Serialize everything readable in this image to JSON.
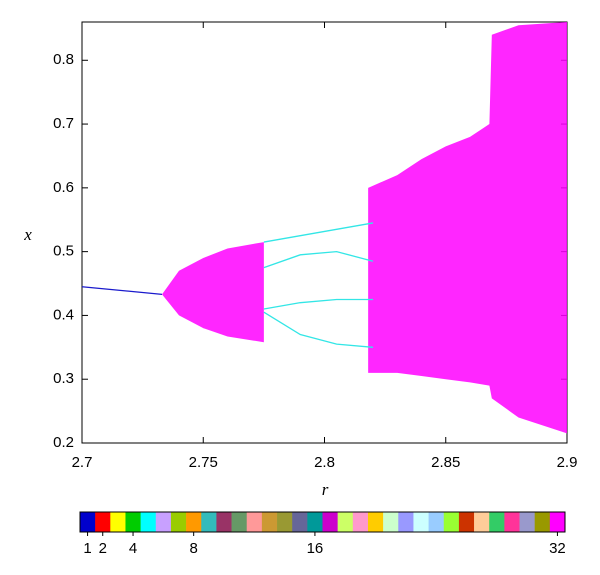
{
  "chart_data": {
    "type": "bifurcation",
    "xlabel": "r",
    "ylabel": "x",
    "xlim": [
      2.7,
      2.9
    ],
    "ylim": [
      0.2,
      0.86
    ],
    "xticks": [
      2.7,
      2.75,
      2.8,
      2.85,
      2.9
    ],
    "yticks": [
      0.2,
      0.3,
      0.4,
      0.5,
      0.6,
      0.7,
      0.8
    ],
    "lines": [
      {
        "color": "#1a1acc",
        "x": [
          2.7,
          2.733
        ],
        "values": [
          0.445,
          0.433
        ]
      },
      {
        "color": "#33e6e6",
        "x": [
          2.775,
          2.79,
          2.805,
          2.82
        ],
        "values": [
          0.515,
          0.525,
          0.535,
          0.545
        ]
      },
      {
        "color": "#33e6e6",
        "x": [
          2.775,
          2.79,
          2.805,
          2.82
        ],
        "values": [
          0.475,
          0.495,
          0.5,
          0.485
        ]
      },
      {
        "color": "#33e6e6",
        "x": [
          2.775,
          2.79,
          2.805,
          2.82
        ],
        "values": [
          0.41,
          0.42,
          0.425,
          0.425
        ]
      },
      {
        "color": "#33e6e6",
        "x": [
          2.775,
          2.79,
          2.805,
          2.82
        ],
        "values": [
          0.405,
          0.37,
          0.355,
          0.35
        ]
      }
    ],
    "bands": [
      {
        "color": "#ff00ff",
        "x": [
          2.733,
          2.74,
          2.75,
          2.76,
          2.775
        ],
        "values": [
          0.433,
          0.47,
          0.49,
          0.505,
          0.515
        ],
        "lower": [
          0.433,
          0.4,
          0.38,
          0.367,
          0.358
        ]
      },
      {
        "color": "#ff00ff",
        "x": [
          2.818,
          2.83,
          2.84,
          2.85,
          2.86,
          2.868,
          2.869,
          2.88,
          2.9
        ],
        "values": [
          0.6,
          0.62,
          0.645,
          0.665,
          0.68,
          0.7,
          0.84,
          0.855,
          0.86
        ],
        "lower": [
          0.31,
          0.31,
          0.305,
          0.3,
          0.295,
          0.29,
          0.27,
          0.24,
          0.215
        ]
      }
    ],
    "colorbar": {
      "colors": [
        "#0000cc",
        "#ff0000",
        "#ffff00",
        "#00cc00",
        "#00ffff",
        "#c8a0ff",
        "#99cc00",
        "#ff9900",
        "#33bbbb",
        "#993366",
        "#669966",
        "#ff9999",
        "#cc9933",
        "#999933",
        "#666699",
        "#009999",
        "#cc00cc",
        "#ccff66",
        "#ff99cc",
        "#ffcc00",
        "#ccffcc",
        "#9999ff",
        "#ccffff",
        "#99ccff",
        "#99ff33",
        "#cc3300",
        "#ffcc99",
        "#33cc66",
        "#ff3399",
        "#9999cc",
        "#999900",
        "#ff00ff"
      ],
      "ticks": [
        1,
        2,
        4,
        8,
        16,
        32
      ]
    }
  }
}
